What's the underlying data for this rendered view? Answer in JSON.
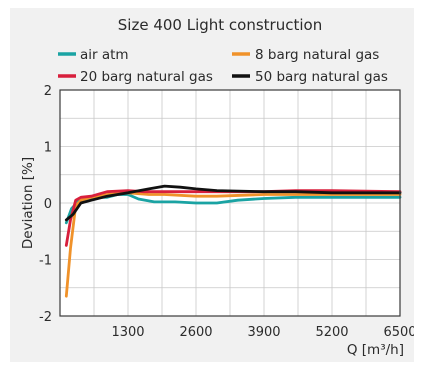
{
  "chart_data": {
    "type": "line",
    "title": "Size 400 Light construction",
    "xlabel": "Q [m³/h]",
    "ylabel": "Deviation [%]",
    "xlim": [
      0,
      6500
    ],
    "ylim": [
      -2,
      2
    ],
    "x_ticks": [
      {
        "value": 1300,
        "label": "1300"
      },
      {
        "value": 2600,
        "label": "2600"
      },
      {
        "value": 3900,
        "label": "3900"
      },
      {
        "value": 5200,
        "label": "5200"
      },
      {
        "value": 6500,
        "label": "6500"
      }
    ],
    "y_ticks": [
      {
        "value": 2,
        "label": "2"
      },
      {
        "value": 1,
        "label": "1"
      },
      {
        "value": 0,
        "label": "0"
      },
      {
        "value": -1,
        "label": "-1"
      },
      {
        "value": -2,
        "label": "-2"
      }
    ],
    "grid": true,
    "legend_position": "top",
    "series": [
      {
        "name": "air atm",
        "color": "#1aa3a3",
        "points": [
          [
            120,
            -0.35
          ],
          [
            220,
            -0.1
          ],
          [
            350,
            0.03
          ],
          [
            500,
            0.08
          ],
          [
            700,
            0.1
          ],
          [
            900,
            0.1
          ],
          [
            1100,
            0.15
          ],
          [
            1300,
            0.15
          ],
          [
            1500,
            0.07
          ],
          [
            1800,
            0.02
          ],
          [
            2200,
            0.02
          ],
          [
            2600,
            0.0
          ],
          [
            3000,
            0.0
          ],
          [
            3400,
            0.05
          ],
          [
            3900,
            0.08
          ],
          [
            4500,
            0.1
          ],
          [
            5200,
            0.1
          ],
          [
            6500,
            0.1
          ]
        ]
      },
      {
        "name": "8 barg natural gas",
        "color": "#f0922a",
        "points": [
          [
            120,
            -1.65
          ],
          [
            200,
            -0.8
          ],
          [
            300,
            -0.05
          ],
          [
            400,
            0.05
          ],
          [
            600,
            0.1
          ],
          [
            900,
            0.15
          ],
          [
            1300,
            0.18
          ],
          [
            1700,
            0.15
          ],
          [
            2000,
            0.15
          ],
          [
            2600,
            0.12
          ],
          [
            3000,
            0.12
          ],
          [
            3900,
            0.15
          ],
          [
            4500,
            0.15
          ],
          [
            5200,
            0.15
          ],
          [
            6500,
            0.15
          ]
        ]
      },
      {
        "name": "20 barg natural gas",
        "color": "#d81f3c",
        "points": [
          [
            120,
            -0.75
          ],
          [
            200,
            -0.3
          ],
          [
            300,
            0.05
          ],
          [
            400,
            0.1
          ],
          [
            600,
            0.12
          ],
          [
            900,
            0.2
          ],
          [
            1300,
            0.22
          ],
          [
            1600,
            0.2
          ],
          [
            2000,
            0.2
          ],
          [
            2600,
            0.2
          ],
          [
            3000,
            0.2
          ],
          [
            3900,
            0.2
          ],
          [
            4500,
            0.22
          ],
          [
            5200,
            0.22
          ],
          [
            6500,
            0.2
          ]
        ]
      },
      {
        "name": "50 barg natural gas",
        "color": "#111111",
        "points": [
          [
            120,
            -0.3
          ],
          [
            250,
            -0.2
          ],
          [
            400,
            0.0
          ],
          [
            600,
            0.05
          ],
          [
            900,
            0.12
          ],
          [
            1300,
            0.18
          ],
          [
            1700,
            0.25
          ],
          [
            2000,
            0.3
          ],
          [
            2300,
            0.28
          ],
          [
            2600,
            0.25
          ],
          [
            3000,
            0.22
          ],
          [
            3900,
            0.2
          ],
          [
            4500,
            0.2
          ],
          [
            5200,
            0.18
          ],
          [
            6500,
            0.18
          ]
        ]
      }
    ]
  }
}
